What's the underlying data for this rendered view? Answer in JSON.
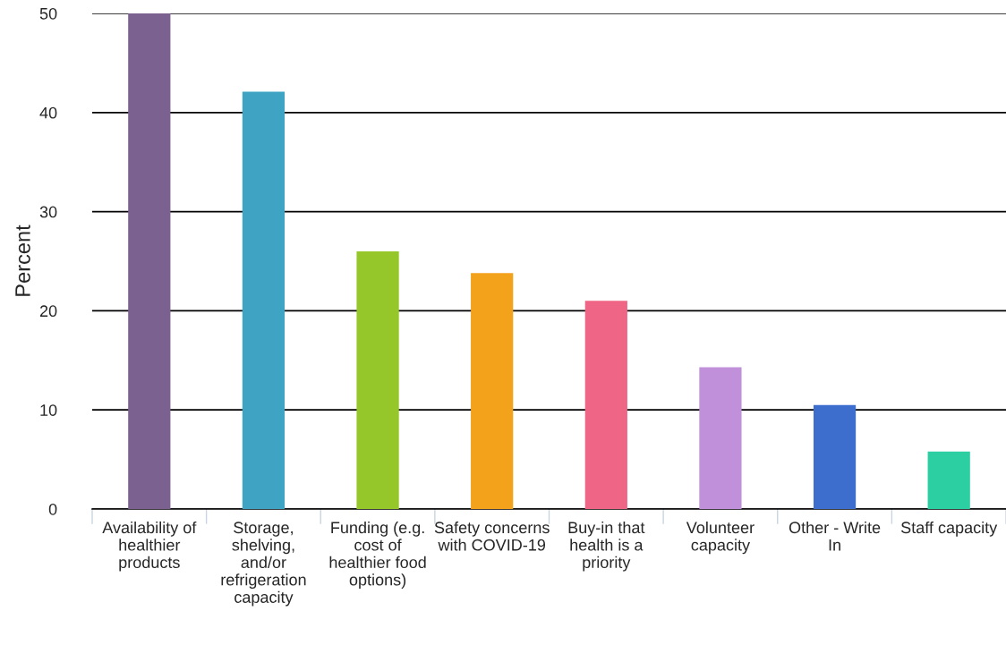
{
  "chart_data": {
    "type": "bar",
    "ylabel": "Percent",
    "categories": [
      "Availability of healthier products",
      "Storage, shelving, and/or refrigeration capacity",
      "Funding (e.g. cost of healthier food options)",
      "Safety concerns with COVID-19",
      "Buy-in that health is a priority",
      "Volunteer capacity",
      "Other - Write In",
      "Staff capacity"
    ],
    "values": [
      50,
      42.1,
      26.0,
      23.8,
      21.0,
      14.3,
      10.5,
      5.8
    ],
    "colors": [
      "#7b6190",
      "#3fa3c4",
      "#95c72b",
      "#f3a21c",
      "#ef6585",
      "#c091da",
      "#3d6ecd",
      "#2bcfa2"
    ],
    "ylim": [
      0,
      50
    ],
    "yticks": [
      0,
      10,
      20,
      30,
      40,
      50
    ],
    "grid": "y"
  }
}
